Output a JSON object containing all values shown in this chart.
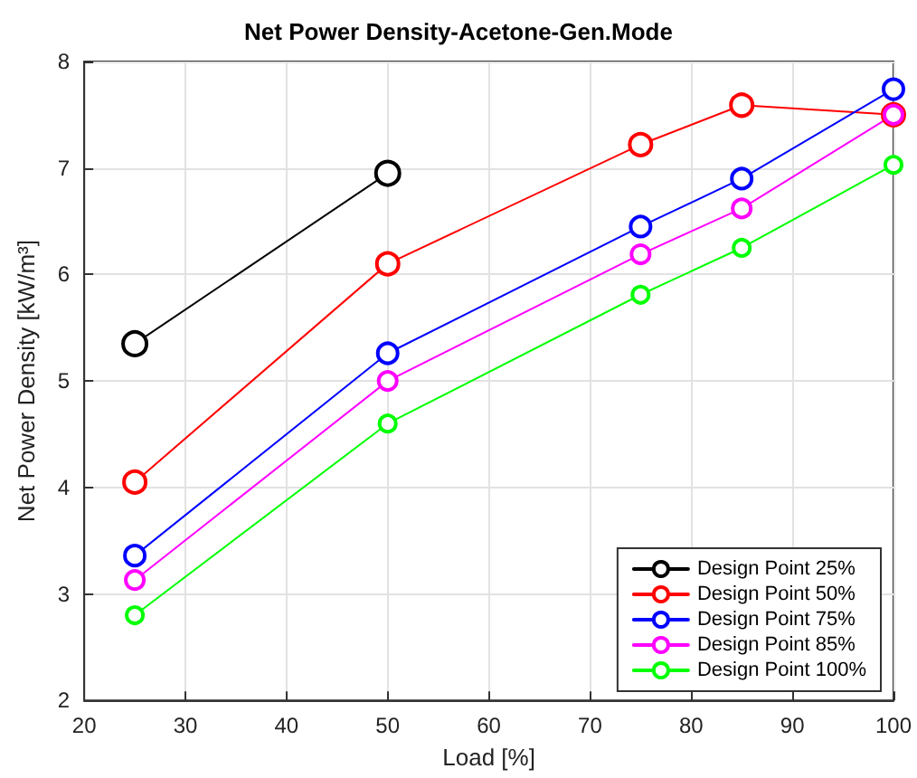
{
  "chart_data": {
    "type": "line",
    "title": "Net Power Density-Acetone-Gen.Mode",
    "xlabel": "Load [%]",
    "ylabel": "Net Power Density [kW/m³]",
    "xlim": [
      20,
      100
    ],
    "xticks": [
      20,
      30,
      40,
      50,
      60,
      70,
      80,
      90,
      100
    ],
    "ylim": [
      2,
      8
    ],
    "yticks": [
      2,
      3,
      4,
      5,
      6,
      7,
      8
    ],
    "grid": true,
    "legend": "bottom right",
    "marker": "circle",
    "line_style": "solid",
    "series": [
      {
        "name": "Design Point 25%",
        "color": "#000000",
        "x": [
          25,
          50
        ],
        "values": [
          5.35,
          6.95
        ]
      },
      {
        "name": "Design Point 50%",
        "color": "#ff0000",
        "x": [
          25,
          50,
          75,
          85,
          100
        ],
        "values": [
          4.05,
          6.1,
          7.22,
          7.59,
          7.5
        ]
      },
      {
        "name": "Design Point 75%",
        "color": "#0000ff",
        "x": [
          25,
          50,
          75,
          85,
          100
        ],
        "values": [
          3.36,
          5.26,
          6.45,
          6.9,
          7.74
        ]
      },
      {
        "name": "Design Point 85%",
        "color": "#ff00ff",
        "x": [
          25,
          50,
          75,
          85,
          100
        ],
        "values": [
          3.13,
          5.0,
          6.19,
          6.62,
          7.5
        ]
      },
      {
        "name": "Design Point 100%",
        "color": "#00ff00",
        "x": [
          25,
          50,
          75,
          85,
          100
        ],
        "values": [
          2.8,
          4.6,
          5.81,
          6.25,
          7.03
        ]
      }
    ]
  }
}
